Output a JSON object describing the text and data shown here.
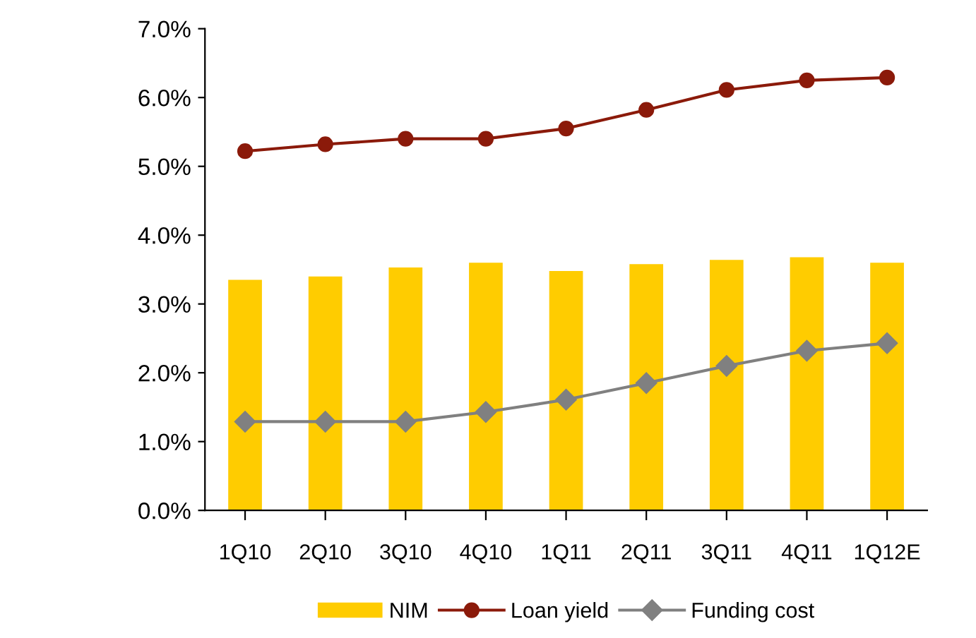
{
  "chart_data": {
    "type": "bar",
    "categories": [
      "1Q10",
      "2Q10",
      "3Q10",
      "4Q10",
      "1Q11",
      "2Q11",
      "3Q11",
      "4Q11",
      "1Q12E"
    ],
    "series": [
      {
        "name": "NIM",
        "color": "#ffcc00",
        "values": [
          3.35,
          3.4,
          3.53,
          3.6,
          3.48,
          3.58,
          3.64,
          3.68,
          3.6
        ]
      },
      {
        "name": "Loan yield",
        "type": "line",
        "color": "#8b1a0a",
        "marker": "circle",
        "values": [
          5.22,
          5.32,
          5.4,
          5.4,
          5.55,
          5.82,
          6.11,
          6.25,
          6.29
        ]
      },
      {
        "name": "Funding cost",
        "type": "line",
        "color": "#808080",
        "marker": "diamond",
        "values": [
          1.29,
          1.29,
          1.29,
          1.43,
          1.61,
          1.85,
          2.1,
          2.32,
          2.43
        ]
      }
    ],
    "ylim": [
      0,
      7
    ],
    "yticks": [
      {
        "value": 0,
        "label": "0.0%"
      },
      {
        "value": 1,
        "label": "1.0%"
      },
      {
        "value": 2,
        "label": "2.0%"
      },
      {
        "value": 3,
        "label": "3.0%"
      },
      {
        "value": 4,
        "label": "4.0%"
      },
      {
        "value": 5,
        "label": "5.0%"
      },
      {
        "value": 6,
        "label": "6.0%"
      },
      {
        "value": 7,
        "label": "7.0%"
      }
    ],
    "grid": false,
    "legend": "bottom"
  }
}
